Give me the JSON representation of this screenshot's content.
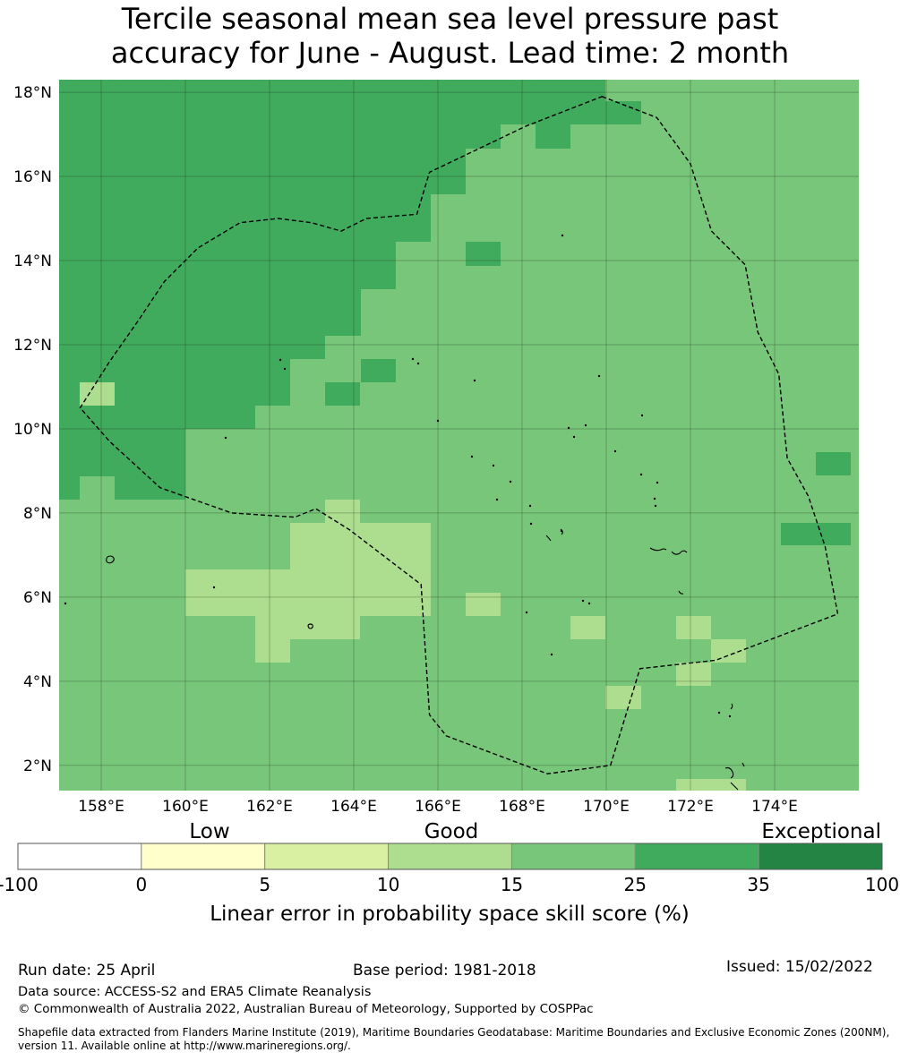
{
  "title": {
    "line1": "Tercile seasonal mean sea level pressure past",
    "line2": "accuracy for June - August. Lead time: 2 month"
  },
  "map": {
    "lon_range": [
      157,
      176
    ],
    "lat_range": [
      1.4,
      18.3
    ],
    "cell_size_deg": 0.833,
    "lon_ticks": [
      158,
      160,
      162,
      164,
      166,
      168,
      170,
      172,
      174
    ],
    "lat_ticks": [
      2,
      4,
      6,
      8,
      10,
      12,
      14,
      16,
      18
    ],
    "lon_labels": [
      "158°E",
      "160°E",
      "162°E",
      "164°E",
      "166°E",
      "168°E",
      "170°E",
      "172°E",
      "174°E"
    ],
    "lat_labels": [
      "2°N",
      "4°N",
      "6°N",
      "8°N",
      "10°N",
      "12°N",
      "14°N",
      "16°N",
      "18°N"
    ],
    "grid": true,
    "skill_category_counts_by_row": [
      "north-west: 25-35",
      "east and south: 15-25",
      "south-central patches: 10-15"
    ],
    "eez_boundary_lonlat": [
      [
        169.9,
        17.9
      ],
      [
        171.2,
        17.4
      ],
      [
        172.0,
        16.3
      ],
      [
        172.5,
        14.7
      ],
      [
        173.3,
        13.9
      ],
      [
        173.6,
        12.3
      ],
      [
        174.1,
        11.3
      ],
      [
        174.3,
        9.3
      ],
      [
        174.8,
        8.4
      ],
      [
        175.2,
        7.2
      ],
      [
        175.5,
        5.6
      ],
      [
        172.6,
        4.5
      ],
      [
        170.8,
        4.3
      ],
      [
        170.1,
        2.0
      ],
      [
        168.6,
        1.8
      ],
      [
        166.2,
        2.7
      ],
      [
        165.8,
        3.2
      ],
      [
        165.6,
        6.3
      ],
      [
        163.9,
        7.6
      ],
      [
        163.1,
        8.1
      ],
      [
        162.6,
        7.9
      ],
      [
        161.1,
        8.0
      ],
      [
        159.4,
        8.6
      ],
      [
        158.2,
        9.7
      ],
      [
        157.5,
        10.5
      ],
      [
        158.2,
        11.6
      ],
      [
        158.9,
        12.6
      ],
      [
        159.5,
        13.5
      ],
      [
        160.3,
        14.3
      ],
      [
        161.3,
        14.9
      ],
      [
        162.2,
        15.0
      ],
      [
        163.0,
        14.9
      ],
      [
        163.7,
        14.7
      ],
      [
        164.3,
        15.0
      ],
      [
        165.5,
        15.1
      ],
      [
        165.8,
        16.1
      ],
      [
        168.1,
        17.2
      ],
      [
        169.9,
        17.9
      ]
    ]
  },
  "colorbar": {
    "category_labels": [
      "Low",
      "Good",
      "Exceptional"
    ],
    "tick_labels": [
      "-100",
      "0",
      "5",
      "10",
      "15",
      "25",
      "35",
      "100"
    ],
    "bins": [
      {
        "range": "-100 to 0",
        "color": "#ffffff"
      },
      {
        "range": "0 to 5",
        "color": "#ffffcc"
      },
      {
        "range": "5 to 10",
        "color": "#d9f0a3"
      },
      {
        "range": "10 to 15",
        "color": "#addd8e"
      },
      {
        "range": "15 to 25",
        "color": "#78c679"
      },
      {
        "range": "25 to 35",
        "color": "#41ab5d"
      },
      {
        "range": "35 to 100",
        "color": "#238443"
      }
    ],
    "title": "Linear error in probability space skill score (%)"
  },
  "footer": {
    "run_date": "Run date: 25 April",
    "base_period": "Base period: 1981-2018",
    "issued": "Issued: 15/02/2022",
    "data_source": "Data source: ACCESS-S2 and ERA5 Climate Reanalysis",
    "copyright": "© Commonwealth of Australia 2022, Australian Bureau of Meteorology, Supported by COSPPac",
    "shapefile": "Shapefile data extracted from Flanders Marine Institute (2019), Maritime Boundaries Geodatabase: Maritime Boundaries and Exclusive Economic Zones (200NM), version 11. Available online at http://www.marineregions.org/."
  }
}
